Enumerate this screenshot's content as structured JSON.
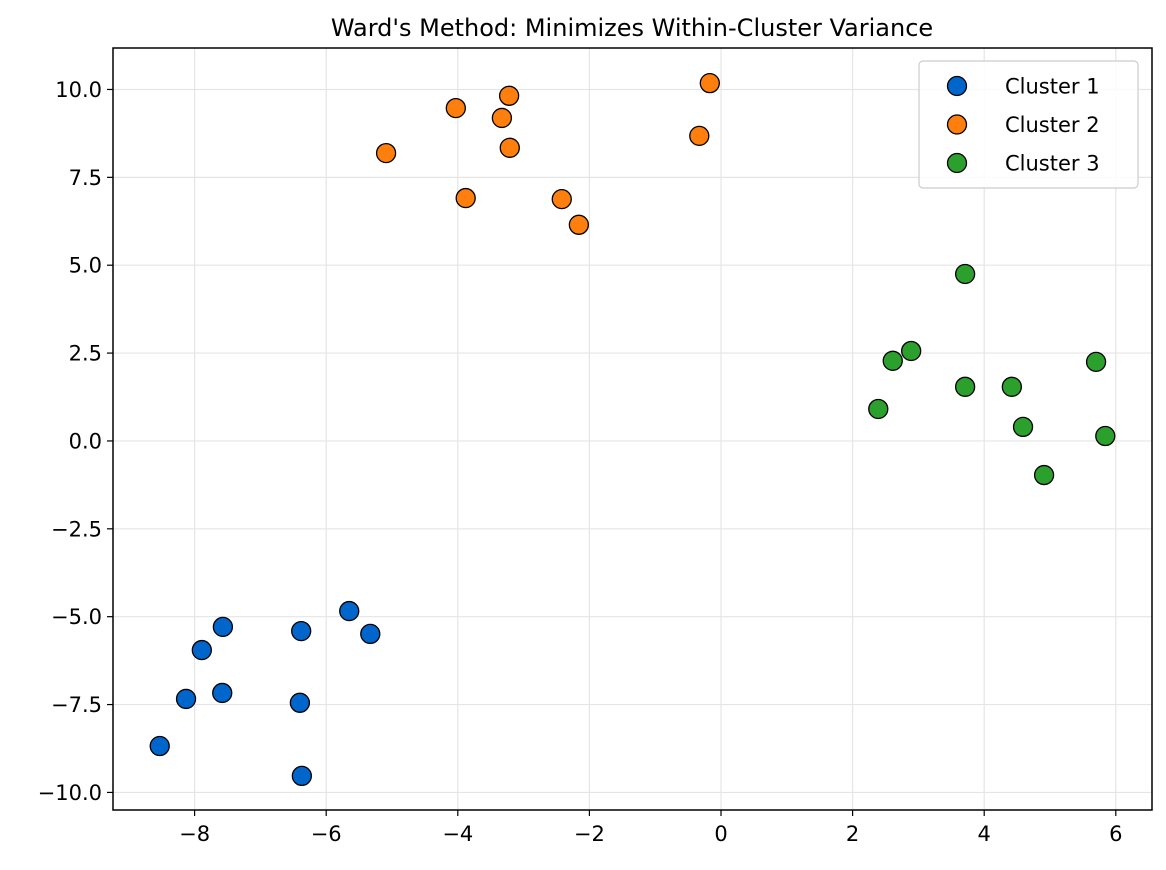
{
  "chart_data": {
    "type": "scatter",
    "title": "Ward's Method: Minimizes Within-Cluster Variance",
    "xlabel": "",
    "ylabel": "",
    "xlim": [
      -9.24,
      6.55
    ],
    "ylim": [
      -10.5,
      11.18
    ],
    "xticks": [
      -8,
      -6,
      -4,
      -2,
      0,
      2,
      4,
      6
    ],
    "xtick_labels": [
      "−8",
      "−6",
      "−4",
      "−2",
      "0",
      "2",
      "4",
      "6"
    ],
    "yticks": [
      10,
      7.5,
      5,
      2.5,
      0,
      -2.5,
      -5,
      -7.5,
      -10
    ],
    "ytick_labels": [
      "10.0",
      "7.5",
      "5.0",
      "2.5",
      "0.0",
      "−2.5",
      "−5.0",
      "−7.5",
      "−10.0"
    ],
    "grid": true,
    "legend_position": "top-right",
    "series": [
      {
        "name": "Cluster 1",
        "color": "#0066cc",
        "points": [
          [
            -8.53,
            -8.68
          ],
          [
            -8.13,
            -7.34
          ],
          [
            -7.89,
            -5.95
          ],
          [
            -7.57,
            -5.29
          ],
          [
            -7.58,
            -7.17
          ],
          [
            -6.38,
            -5.41
          ],
          [
            -6.4,
            -7.45
          ],
          [
            -6.37,
            -9.53
          ],
          [
            -5.65,
            -4.84
          ],
          [
            -5.33,
            -5.49
          ]
        ]
      },
      {
        "name": "Cluster 2",
        "color": "#ff7f0e",
        "points": [
          [
            -5.09,
            8.19
          ],
          [
            -4.03,
            9.47
          ],
          [
            -3.88,
            6.91
          ],
          [
            -3.33,
            9.19
          ],
          [
            -3.22,
            9.82
          ],
          [
            -3.21,
            8.34
          ],
          [
            -2.42,
            6.88
          ],
          [
            -2.16,
            6.15
          ],
          [
            -0.33,
            8.68
          ],
          [
            -0.17,
            10.18
          ]
        ]
      },
      {
        "name": "Cluster 3",
        "color": "#2ca02c",
        "points": [
          [
            2.39,
            0.91
          ],
          [
            2.61,
            2.28
          ],
          [
            2.89,
            2.56
          ],
          [
            3.71,
            4.75
          ],
          [
            3.71,
            1.54
          ],
          [
            4.42,
            1.54
          ],
          [
            4.59,
            0.4
          ],
          [
            4.91,
            -0.97
          ],
          [
            5.7,
            2.25
          ],
          [
            5.84,
            0.14
          ]
        ]
      }
    ]
  }
}
